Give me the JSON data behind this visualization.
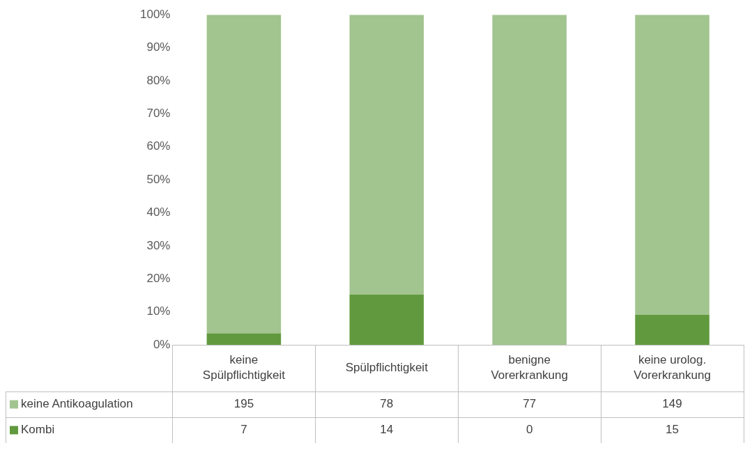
{
  "chart_data": {
    "type": "bar",
    "stacked": true,
    "categories": [
      "keine Spülpflichtigkeit",
      "Spülpflichtigkeit",
      "benigne Vorerkrankung",
      "keine urolog. Vorerkrankung"
    ],
    "series": [
      {
        "name": "Kombi",
        "color": "#619a3e",
        "values": [
          3.5,
          15.2,
          0,
          9.1
        ]
      },
      {
        "name": "keine Antikoagulation",
        "color": "#a2c48f",
        "values": [
          96.5,
          84.8,
          100,
          90.9
        ]
      }
    ],
    "ylim": [
      0,
      100
    ],
    "yticks": [
      {
        "value": 0,
        "label": "0%"
      },
      {
        "value": 10,
        "label": "10%"
      },
      {
        "value": 20,
        "label": "20%"
      },
      {
        "value": 30,
        "label": "30%"
      },
      {
        "value": 40,
        "label": "40%"
      },
      {
        "value": 50,
        "label": "50%"
      },
      {
        "value": 60,
        "label": "60%"
      },
      {
        "value": 70,
        "label": "70%"
      },
      {
        "value": 80,
        "label": "80%"
      },
      {
        "value": 90,
        "label": "90%"
      },
      {
        "value": 100,
        "label": "100%"
      }
    ],
    "annotations": [
      "195",
      "78",
      "77",
      "149",
      "7",
      "14",
      "0",
      "15"
    ],
    "grid": false,
    "legend": "bottom left"
  }
}
